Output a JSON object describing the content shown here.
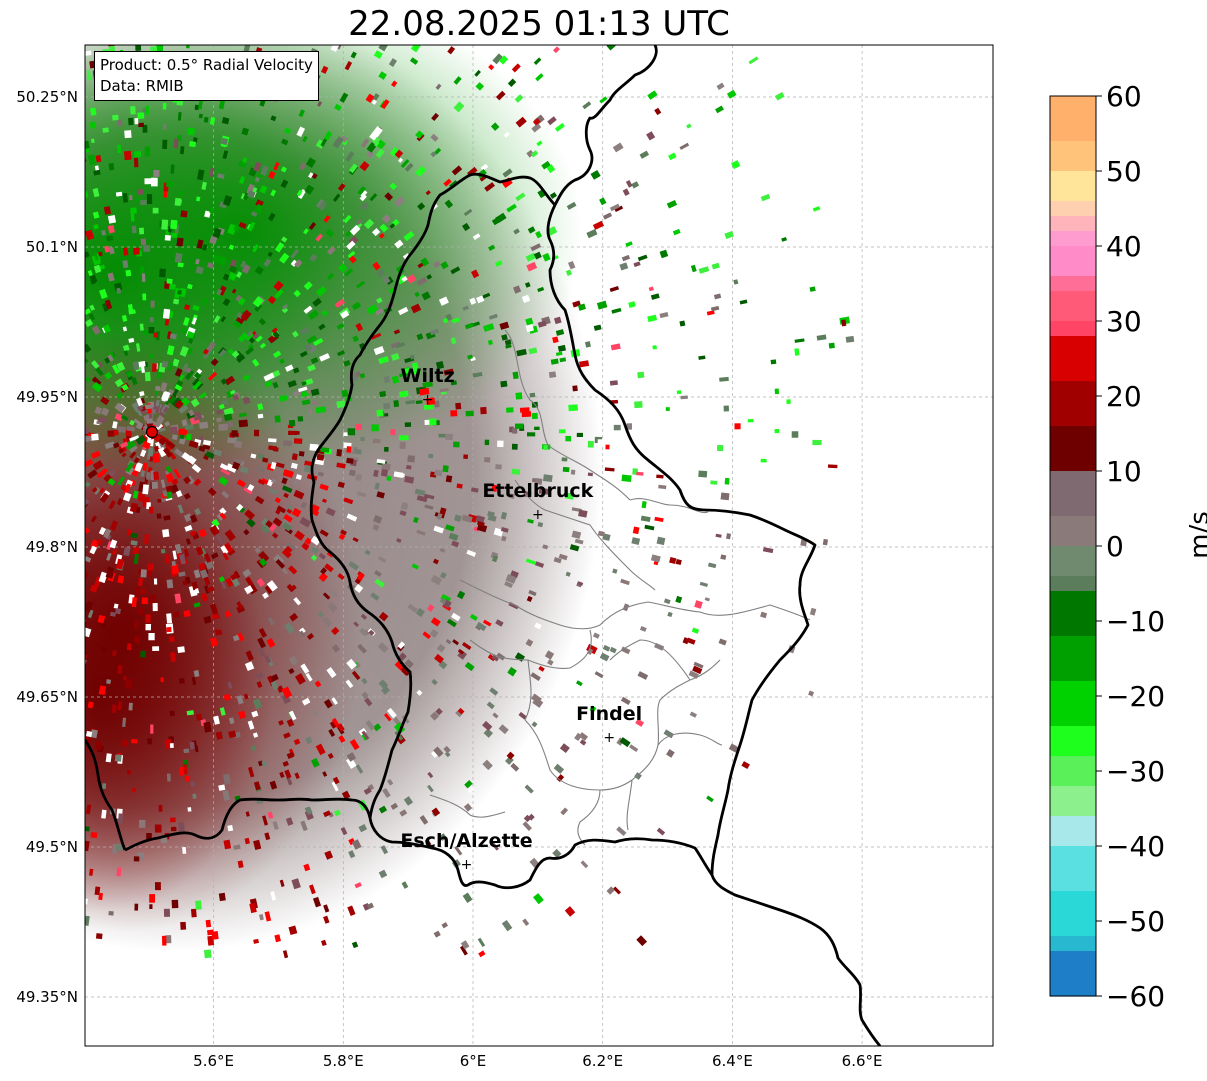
{
  "title": "22.08.2025 01:13 UTC",
  "info": {
    "product": "Product: 0.5° Radial Velocity",
    "source": "Data: RMIB"
  },
  "map": {
    "lon_range": [
      5.4,
      6.8
    ],
    "lat_range": [
      49.3,
      50.3
    ],
    "x_ticks": [
      {
        "value": 5.6,
        "label": "5.6°E"
      },
      {
        "value": 5.8,
        "label": "5.8°E"
      },
      {
        "value": 6.0,
        "label": "6°E"
      },
      {
        "value": 6.2,
        "label": "6.2°E"
      },
      {
        "value": 6.4,
        "label": "6.4°E"
      },
      {
        "value": 6.6,
        "label": "6.6°E"
      }
    ],
    "y_ticks": [
      {
        "value": 50.25,
        "label": "50.25°N"
      },
      {
        "value": 50.1,
        "label": "50.1°N"
      },
      {
        "value": 49.95,
        "label": "49.95°N"
      },
      {
        "value": 49.8,
        "label": "49.8°N"
      },
      {
        "value": 49.65,
        "label": "49.65°N"
      },
      {
        "value": 49.5,
        "label": "49.5°N"
      },
      {
        "value": 49.35,
        "label": "49.35°N"
      }
    ],
    "grid": true,
    "radar_site": {
      "lon": 5.505,
      "lat": 49.915
    },
    "cities": [
      {
        "name": "Wiltz",
        "lon": 5.93,
        "lat": 49.965
      },
      {
        "name": "Ettelbruck",
        "lon": 6.1,
        "lat": 49.85
      },
      {
        "name": "Findel",
        "lon": 6.21,
        "lat": 49.627
      },
      {
        "name": "Esch/Alzette",
        "lon": 5.99,
        "lat": 49.5
      }
    ]
  },
  "colorbar": {
    "label": "m/s",
    "min": -60,
    "max": 60,
    "ticks": [
      {
        "value": 60,
        "label": "60"
      },
      {
        "value": 50,
        "label": "50"
      },
      {
        "value": 40,
        "label": "40"
      },
      {
        "value": 30,
        "label": "30"
      },
      {
        "value": 20,
        "label": "20"
      },
      {
        "value": 10,
        "label": "10"
      },
      {
        "value": 0,
        "label": "0"
      },
      {
        "value": -10,
        "label": "−10"
      },
      {
        "value": -20,
        "label": "−20"
      },
      {
        "value": -30,
        "label": "−30"
      },
      {
        "value": -40,
        "label": "−40"
      },
      {
        "value": -50,
        "label": "−50"
      },
      {
        "value": -60,
        "label": "−60"
      }
    ],
    "colors": {
      "top": "#ff9f55",
      "orange_low": "#ffd27f",
      "peach": "#ffc8a8",
      "pink": "#ff8cc8",
      "pink_red": "#ff4466",
      "red": "#ff0000",
      "dark_red": "#6e0000",
      "mauve": "#7d4d5a",
      "gray": "#8a7878",
      "gray_green": "#5c7d5c",
      "dark_green": "#005a00",
      "green": "#00c800",
      "bright_green": "#1eff1e",
      "light_green": "#8cf08c",
      "light_cyan": "#b4ecf0",
      "cyan": "#32dcdc",
      "blue": "#1e7ec8"
    }
  }
}
